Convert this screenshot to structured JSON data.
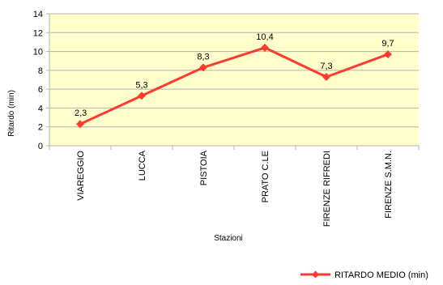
{
  "chart_data": {
    "type": "line",
    "title": "",
    "xlabel": "Stazioni",
    "ylabel": "Ritardo (min)",
    "categories": [
      "VIAREGGIO",
      "LUCCA",
      "PISTOIA",
      "PRATO C.LE",
      "FIRENZE RIFREDI",
      "FIRENZE S.M.N."
    ],
    "series": [
      {
        "name": "RITARDO MEDIO (min)",
        "values": [
          2.3,
          5.3,
          8.3,
          10.4,
          7.3,
          9.7
        ],
        "data_labels": [
          "2,3",
          "5,3",
          "8,3",
          "10,4",
          "7,3",
          "9,7"
        ],
        "color": "#ff3b30"
      }
    ],
    "ylim": [
      0,
      14
    ],
    "yticks": [
      "0",
      "2",
      "4",
      "6",
      "8",
      "10",
      "12",
      "14"
    ],
    "grid": true,
    "plot_background": "#ffffcc",
    "gridline_color": "#b3b3b3",
    "legend_position": "bottom-right"
  }
}
